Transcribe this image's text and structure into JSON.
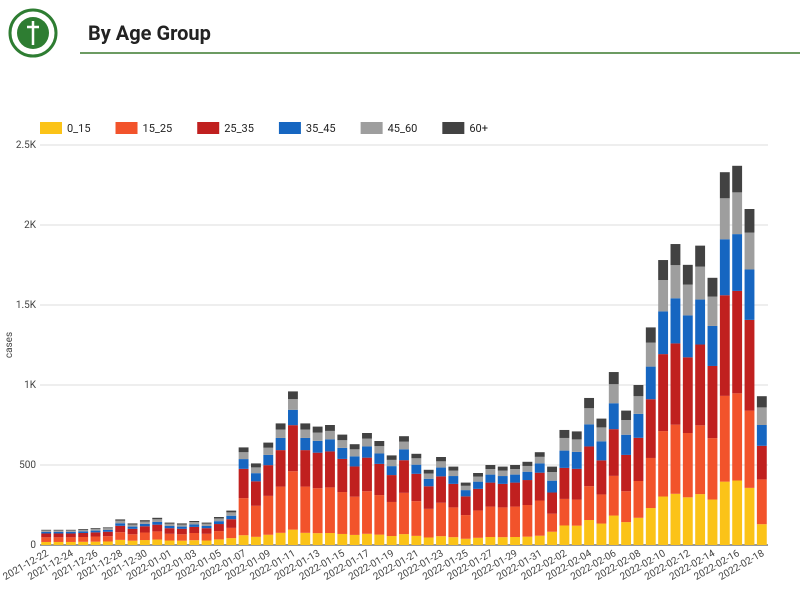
{
  "chart_data": {
    "type": "bar",
    "stacked": true,
    "title": "By Age Group",
    "y_label": "cases",
    "categories": [
      "2021-12-22",
      null,
      "2021-12-24",
      null,
      "2021-12-26",
      null,
      "2021-12-28",
      null,
      "2021-12-30",
      null,
      "2022-01-01",
      null,
      "2022-01-03",
      null,
      "2022-01-05",
      null,
      "2022-01-07",
      null,
      "2022-01-09",
      null,
      "2022-01-11",
      null,
      "2022-01-13",
      null,
      "2022-01-15",
      null,
      "2022-01-17",
      null,
      "2022-01-19",
      null,
      "2022-01-21",
      null,
      "2022-01-23",
      null,
      "2022-01-25",
      null,
      "2022-01-27",
      null,
      "2022-01-29",
      null,
      "2022-01-31",
      null,
      "2022-02-02",
      null,
      "2022-02-04",
      null,
      "2022-02-06",
      null,
      "2022-02-08",
      null,
      "2022-02-10",
      null,
      "2022-02-12",
      null,
      "2022-02-14",
      null,
      "2022-02-16",
      null,
      "2022-02-18"
    ],
    "series": [
      {
        "name": "0_15",
        "color": "#fbc318",
        "values": [
          19,
          19,
          19,
          20,
          21,
          22,
          32,
          27,
          31,
          34,
          28,
          27,
          30,
          28,
          35,
          43,
          61,
          51,
          64,
          76,
          96,
          76,
          74,
          75,
          69,
          63,
          70,
          65,
          56,
          68,
          57,
          47,
          55,
          49,
          39,
          45,
          50,
          49,
          50,
          52,
          58,
          83,
          122,
          121,
          156,
          134,
          184,
          143,
          170,
          231,
          303,
          320,
          298,
          318,
          284,
          396,
          403,
          357,
          130
        ]
      },
      {
        "name": "15_25",
        "color": "#f2532b",
        "values": [
          29,
          29,
          29,
          30,
          32,
          33,
          48,
          40,
          47,
          51,
          42,
          40,
          45,
          42,
          52,
          64,
          232,
          194,
          243,
          289,
          365,
          289,
          281,
          285,
          262,
          239,
          266,
          247,
          213,
          258,
          217,
          179,
          209,
          186,
          148,
          171,
          190,
          186,
          190,
          198,
          220,
          113,
          166,
          163,
          212,
          182,
          248,
          193,
          230,
          313,
          409,
          432,
          402,
          430,
          384,
          536,
          545,
          483,
          280
        ]
      },
      {
        "name": "25_35",
        "color": "#c0201f",
        "values": [
          24,
          24,
          24,
          25,
          26,
          28,
          40,
          34,
          39,
          42,
          35,
          34,
          38,
          35,
          44,
          54,
          183,
          153,
          192,
          228,
          288,
          228,
          222,
          225,
          207,
          189,
          210,
          195,
          168,
          204,
          171,
          141,
          165,
          147,
          117,
          135,
          150,
          147,
          150,
          156,
          174,
          132,
          194,
          192,
          248,
          213,
          292,
          227,
          270,
          367,
          481,
          508,
          473,
          505,
          451,
          629,
          640,
          567,
          210
        ]
      },
      {
        "name": "35_45",
        "color": "#1666c1",
        "values": [
          10,
          10,
          10,
          10,
          11,
          11,
          16,
          14,
          15,
          17,
          14,
          14,
          15,
          14,
          18,
          22,
          61,
          51,
          64,
          76,
          96,
          76,
          74,
          75,
          69,
          63,
          70,
          65,
          56,
          68,
          57,
          47,
          55,
          49,
          39,
          45,
          50,
          49,
          50,
          52,
          58,
          74,
          108,
          106,
          138,
          119,
          162,
          126,
          150,
          204,
          267,
          282,
          262,
          281,
          250,
          350,
          355,
          315,
          130
        ]
      },
      {
        "name": "45_60",
        "color": "#9e9e9e",
        "values": [
          9,
          9,
          9,
          10,
          10,
          11,
          16,
          13,
          15,
          17,
          14,
          13,
          15,
          14,
          17,
          21,
          43,
          36,
          45,
          53,
          67,
          53,
          52,
          53,
          48,
          44,
          49,
          46,
          39,
          48,
          40,
          33,
          39,
          34,
          27,
          32,
          35,
          34,
          35,
          36,
          41,
          54,
          79,
          78,
          101,
          87,
          119,
          92,
          110,
          150,
          196,
          207,
          193,
          206,
          184,
          256,
          261,
          231,
          110
        ]
      },
      {
        "name": "60+",
        "color": "#424242",
        "values": [
          4,
          4,
          4,
          5,
          5,
          5,
          8,
          7,
          8,
          9,
          7,
          7,
          7,
          7,
          9,
          11,
          30,
          25,
          32,
          38,
          48,
          38,
          37,
          37,
          35,
          32,
          35,
          32,
          28,
          34,
          28,
          23,
          27,
          25,
          20,
          22,
          25,
          25,
          25,
          26,
          29,
          34,
          50,
          50,
          64,
          55,
          76,
          59,
          70,
          95,
          125,
          132,
          123,
          131,
          117,
          163,
          166,
          147,
          70
        ]
      }
    ],
    "ylim": [
      0,
      2500
    ],
    "yticks": [
      0,
      500,
      {
        "value": 1000,
        "label": "1K"
      },
      {
        "value": 1500,
        "label": "1.5K"
      },
      {
        "value": 2000,
        "label": "2K"
      },
      {
        "value": 2500,
        "label": "2.5K"
      }
    ],
    "grid": true,
    "legend": "top"
  }
}
